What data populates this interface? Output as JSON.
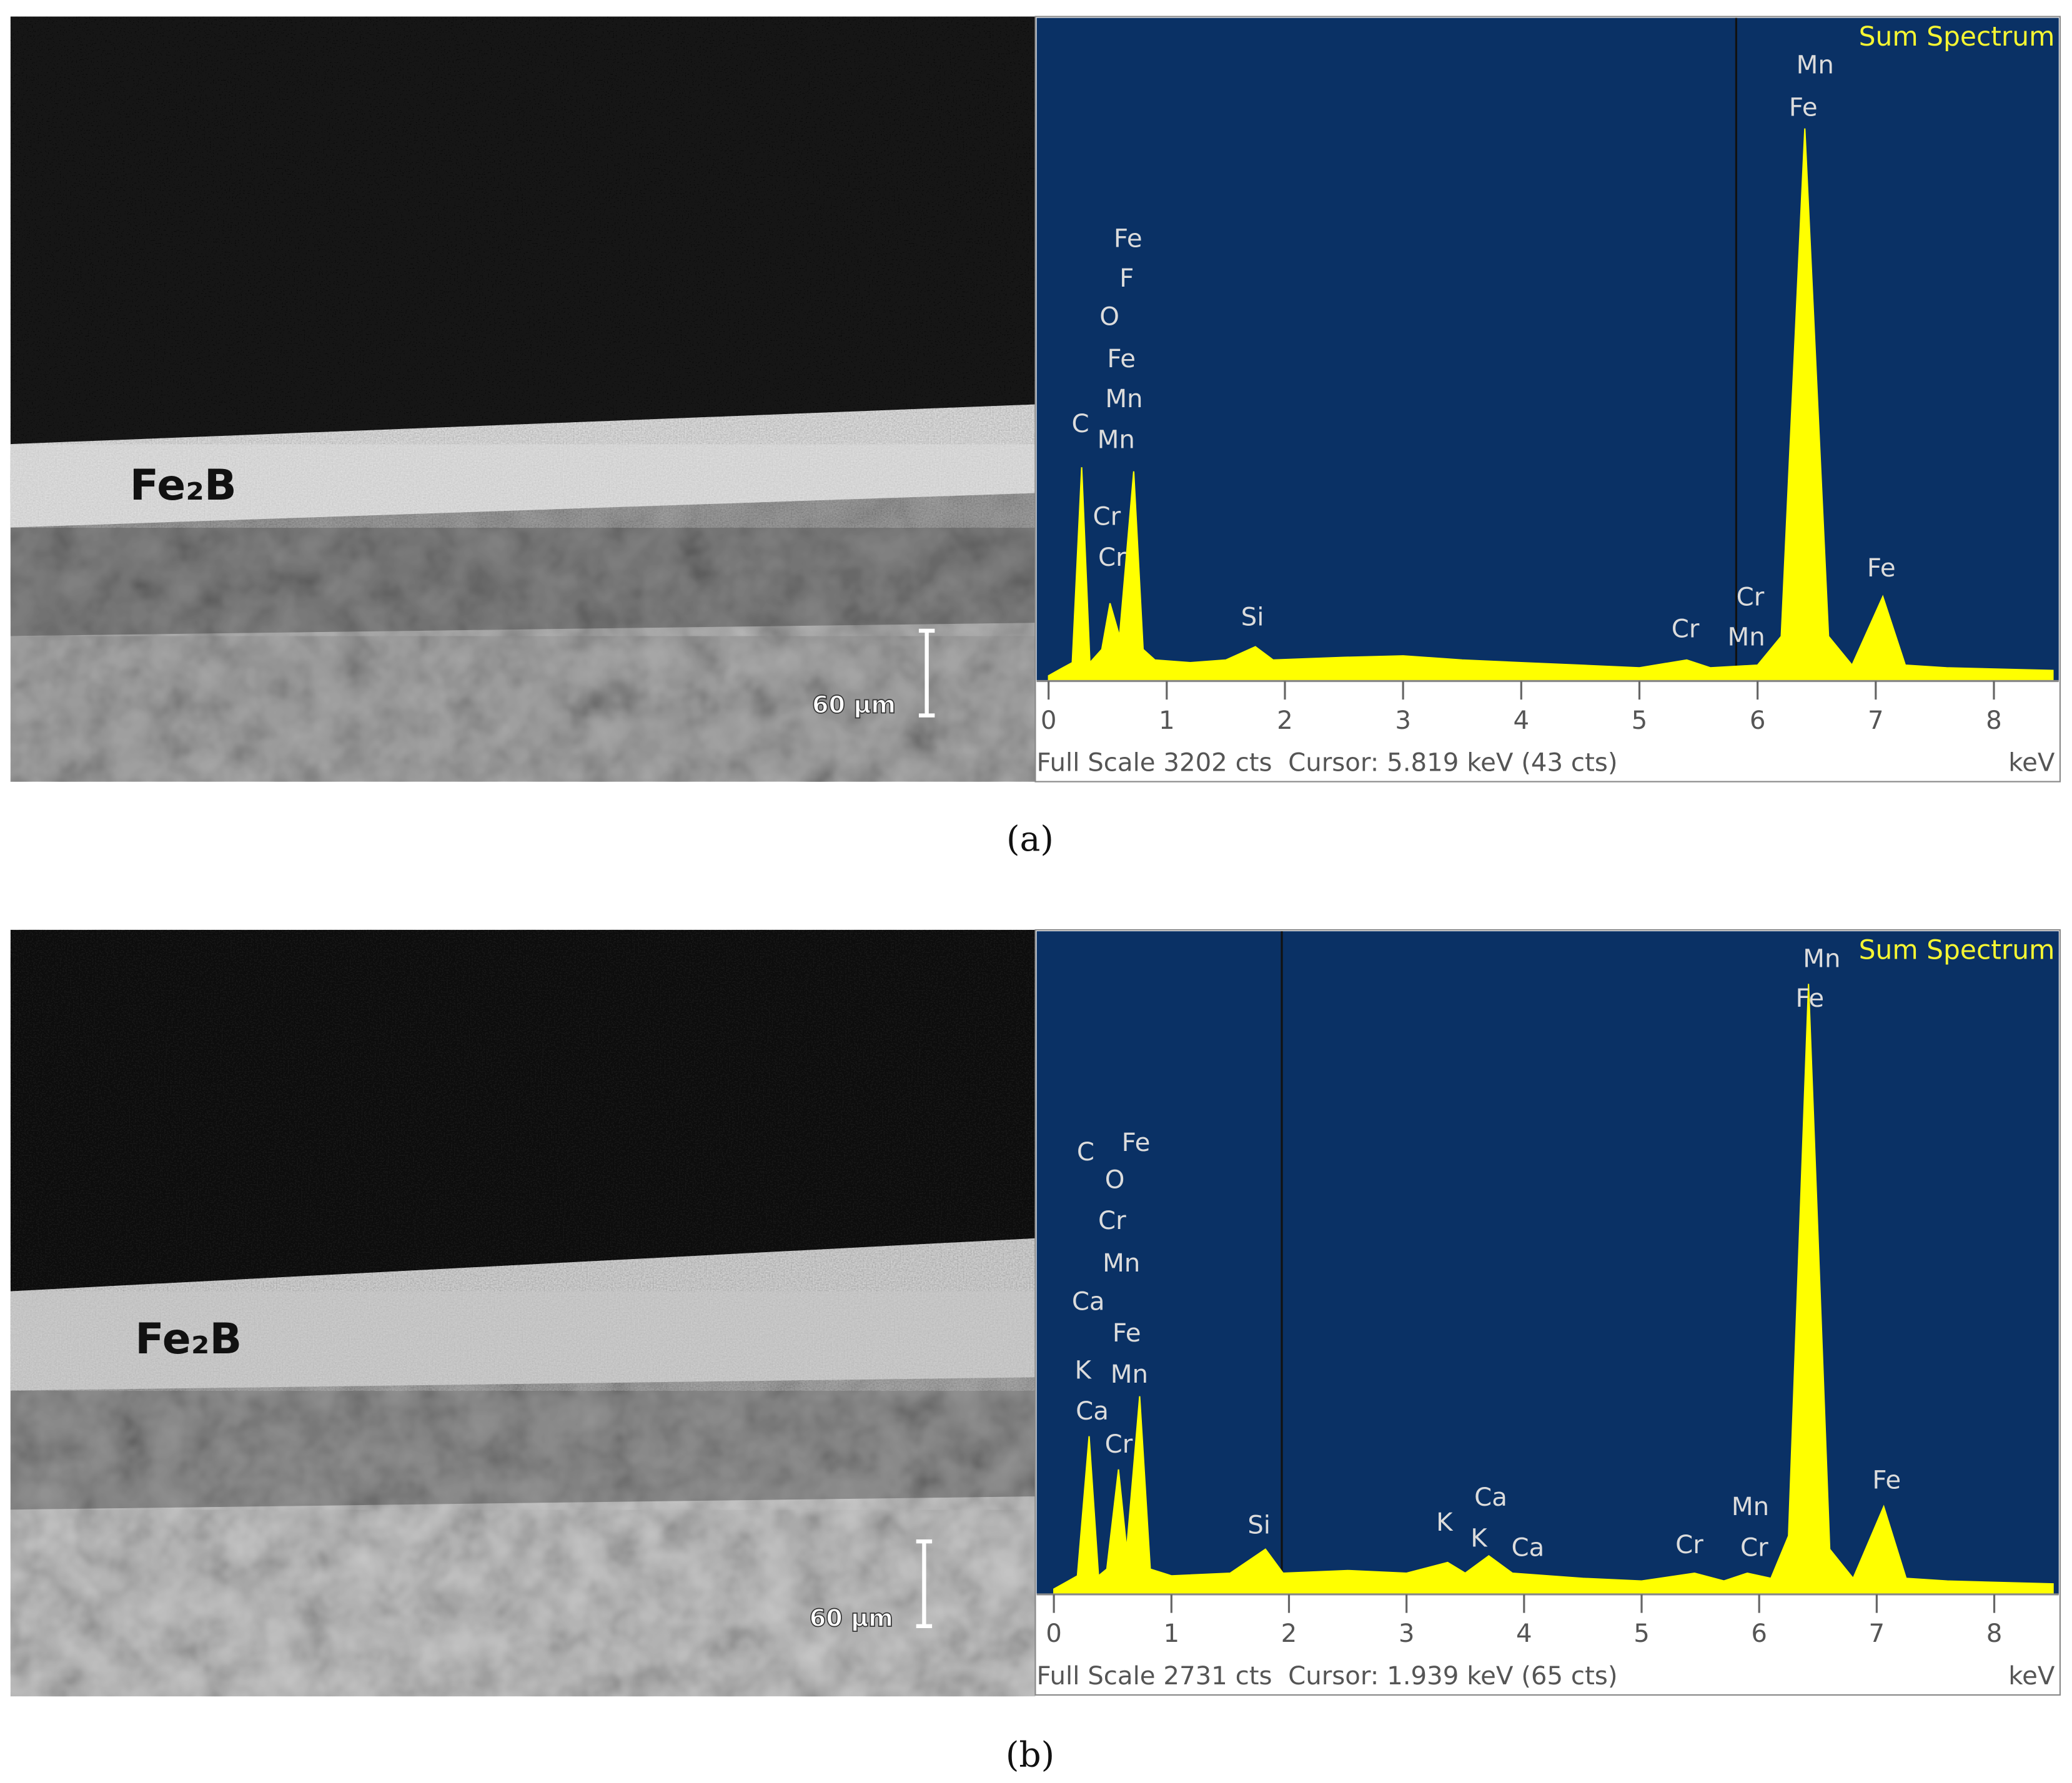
{
  "panels": [
    {
      "label": "(a)",
      "phase_label": "Fe₂B",
      "scale_bar": "60 μm"
    },
    {
      "label": "(b)",
      "phase_label": "Fe₂B",
      "scale_bar": "60 μm"
    }
  ],
  "chart_data": [
    {
      "type": "area",
      "title": "Sum Spectrum",
      "footer": "Full Scale 3202 cts  Cursor: 5.819 keV (43 cts)",
      "x_label": "keV",
      "color": "#ffff00",
      "background": "#0a3165",
      "x": [
        0,
        0.1,
        0.2,
        0.28,
        0.35,
        0.45,
        0.52,
        0.6,
        0.72,
        0.8,
        0.9,
        1.2,
        1.5,
        1.75,
        1.9,
        2.5,
        3.0,
        3.5,
        4.0,
        4.5,
        5.0,
        5.4,
        5.6,
        6.0,
        6.2,
        6.4,
        6.6,
        6.8,
        7.06,
        7.25,
        7.6,
        8.5
      ],
      "values": [
        0,
        33,
        65,
        1029,
        65,
        130,
        358,
        195,
        1009,
        130,
        78,
        65,
        78,
        143,
        78,
        91,
        98,
        78,
        65,
        52,
        39,
        78,
        39,
        52,
        195,
        2702,
        195,
        52,
        391,
        52,
        39,
        26
      ],
      "xlim": [
        0,
        8.56
      ],
      "xticks": [
        0,
        1,
        2,
        3,
        4,
        5,
        6,
        7,
        8
      ],
      "ylim": [
        0,
        3202
      ],
      "cursor": 5.819,
      "annotations": [
        "Fe",
        "F",
        "O",
        "Fe",
        "Mn",
        "C",
        "Mn",
        "Cr",
        "Cr",
        "Si",
        "Cr",
        "Cr",
        "Mn",
        "Mn",
        "Fe",
        "Fe"
      ]
    },
    {
      "type": "area",
      "title": "Sum Spectrum",
      "footer": "Full Scale 2731 cts  Cursor: 1.939 keV (65 cts)",
      "x_label": "keV",
      "color": "#ffff00",
      "background": "#0a3165",
      "x": [
        0,
        0.1,
        0.2,
        0.3,
        0.38,
        0.45,
        0.55,
        0.62,
        0.73,
        0.82,
        1.0,
        1.5,
        1.8,
        1.95,
        2.5,
        3.0,
        3.35,
        3.5,
        3.7,
        3.9,
        4.5,
        5.0,
        5.45,
        5.7,
        5.9,
        6.1,
        6.25,
        6.42,
        6.6,
        6.8,
        7.06,
        7.25,
        7.6,
        8.5
      ],
      "values": [
        0,
        28,
        56,
        644,
        56,
        84,
        504,
        168,
        812,
        84,
        56,
        67,
        168,
        67,
        78,
        67,
        112,
        67,
        140,
        67,
        45,
        34,
        67,
        34,
        67,
        45,
        224,
        2548,
        168,
        45,
        347,
        45,
        34,
        22
      ],
      "xlim": [
        0,
        8.56
      ],
      "xticks": [
        0,
        1,
        2,
        3,
        4,
        5,
        6,
        7,
        8
      ],
      "ylim": [
        0,
        2731
      ],
      "cursor": 1.939,
      "annotations": [
        "C",
        "O",
        "Fe",
        "Cr",
        "Mn",
        "Ca",
        "Fe",
        "K",
        "Mn",
        "Ca",
        "Cr",
        "Si",
        "K",
        "Ca",
        "K",
        "Ca",
        "Cr",
        "Mn",
        "Cr",
        "Mn",
        "Fe",
        "Fe"
      ]
    }
  ]
}
